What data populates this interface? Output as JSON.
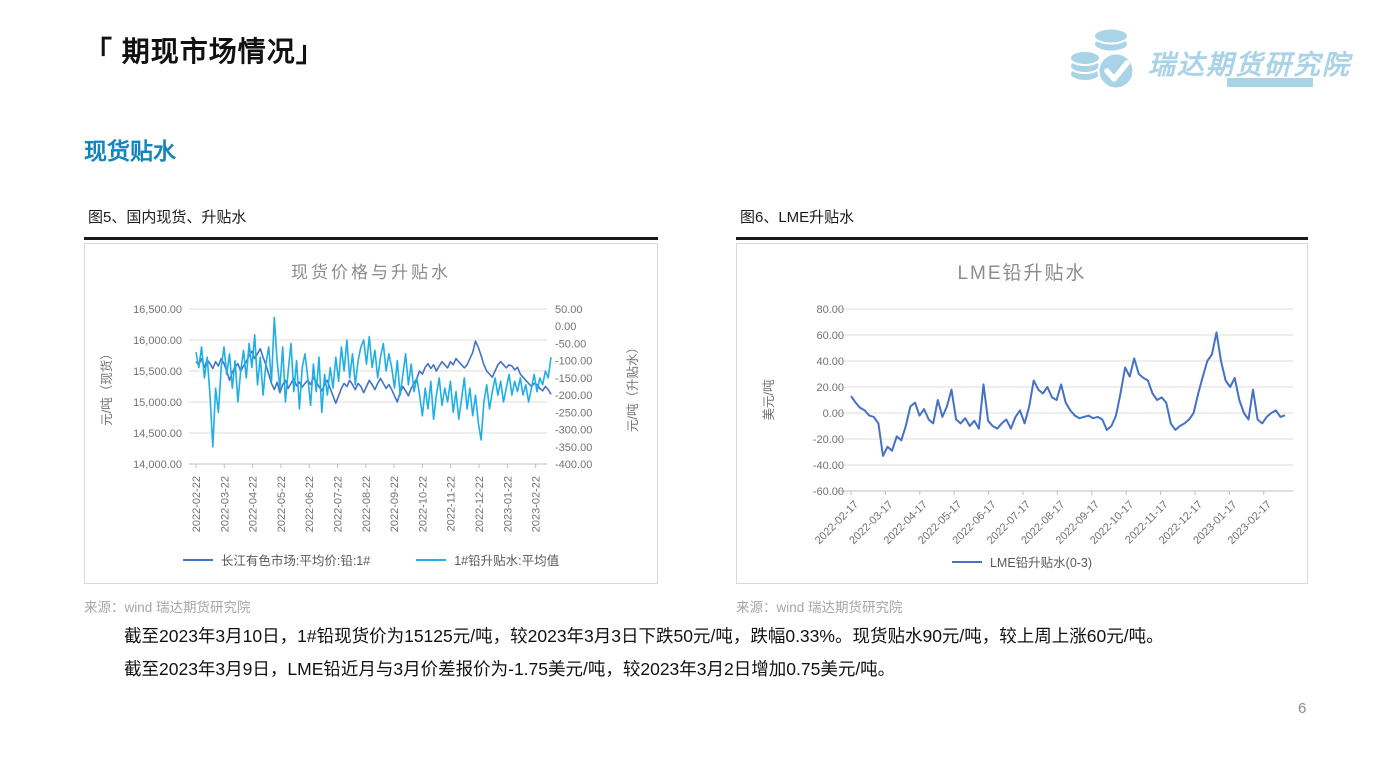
{
  "page": {
    "title": "「 期现市场情况」",
    "section_heading": "现货贴水",
    "page_number": "6",
    "accent_color": "#1583bc",
    "brand": {
      "name": "瑞达期货研究院",
      "color": "#a9d3e7"
    }
  },
  "figures": [
    {
      "caption": "图5、国内现货、升贴水",
      "source": "来源：wind   瑞达期货研究院"
    },
    {
      "caption": "图6、LME升贴水",
      "source": "来源：wind   瑞达期货研究院"
    }
  ],
  "notes": [
    "截至2023年3月10日，1#铅现货价为15125元/吨，较2023年3月3日下跌50元/吨，跌幅0.33%。现货贴水90元/吨，较上周上涨60元/吨。",
    "截至2023年3月9日，LME铅近月与3月价差报价为-1.75美元/吨，较2023年3月2日增加0.75美元/吨。"
  ],
  "chart_data": [
    {
      "type": "line",
      "title": "现货价格与升贴水",
      "grid": true,
      "legend_position": "bottom",
      "x_tick_labels": [
        "2022-02-22",
        "2022-03-22",
        "2022-04-22",
        "2022-05-22",
        "2022-06-22",
        "2022-07-22",
        "2022-08-22",
        "2022-09-22",
        "2022-10-22",
        "2022-11-22",
        "2022-12-22",
        "2023-01-22",
        "2023-02-22"
      ],
      "y_left": {
        "label": "元/吨（现货）",
        "min": 14000,
        "max": 16500,
        "step": 500
      },
      "y_right": {
        "label": "元/吨（升贴水）",
        "min": -400,
        "max": 50,
        "step": 50
      },
      "series": [
        {
          "name": "长江有色市场:平均价:铅:1#",
          "color": "#4472c4",
          "axis": "left",
          "values": [
            15650,
            15600,
            15700,
            15560,
            15680,
            15620,
            15540,
            15650,
            15580,
            15700,
            15620,
            15500,
            15350,
            15480,
            15560,
            15620,
            15500,
            15580,
            15650,
            15750,
            15820,
            15700,
            15780,
            15860,
            15720,
            15600,
            15450,
            15300,
            15200,
            15320,
            15150,
            15280,
            15350,
            15220,
            15300,
            15380,
            15260,
            15320,
            15240,
            15300,
            15350,
            15280,
            15400,
            15320,
            15250,
            15180,
            15280,
            15350,
            15220,
            15100,
            14980,
            15100,
            15220,
            15300,
            15250,
            15350,
            15280,
            15200,
            15300,
            15250,
            15150,
            15250,
            15350,
            15280,
            15200,
            15300,
            15380,
            15300,
            15220,
            15280,
            15200,
            15100,
            15000,
            15150,
            15250,
            15180,
            15100,
            15220,
            15300,
            15380,
            15500,
            15450,
            15560,
            15620,
            15540,
            15600,
            15500,
            15580,
            15650,
            15600,
            15550,
            15650,
            15600,
            15700,
            15650,
            15600,
            15550,
            15600,
            15700,
            15800,
            15980,
            15880,
            15750,
            15600,
            15500,
            15450,
            15400,
            15500,
            15600,
            15650,
            15600,
            15550,
            15600,
            15580,
            15520,
            15560,
            15450,
            15400,
            15350,
            15300,
            15250,
            15300,
            15280,
            15220,
            15180,
            15250,
            15200,
            15125
          ]
        },
        {
          "name": "1#铅升贴水:平均值",
          "color": "#21aee5",
          "axis": "right",
          "values": [
            -75,
            -120,
            -60,
            -150,
            -90,
            -200,
            -350,
            -180,
            -250,
            -120,
            -60,
            -140,
            -80,
            -180,
            -100,
            -220,
            -130,
            -70,
            -150,
            -50,
            -120,
            -25,
            -170,
            -90,
            -200,
            -110,
            -60,
            -160,
            25,
            -100,
            -180,
            -60,
            -220,
            -130,
            -50,
            -190,
            -100,
            -240,
            -120,
            -80,
            -150,
            -230,
            -110,
            -190,
            -90,
            -250,
            -140,
            -200,
            -120,
            -180,
            -90,
            -160,
            -60,
            -130,
            -40,
            -150,
            -80,
            -170,
            -100,
            -60,
            -40,
            -110,
            -30,
            -120,
            -70,
            -150,
            -90,
            -50,
            -130,
            -80,
            -120,
            -180,
            -100,
            -200,
            -140,
            -80,
            -170,
            -110,
            -190,
            -150,
            -200,
            -260,
            -180,
            -240,
            -160,
            -270,
            -200,
            -150,
            -230,
            -180,
            -220,
            -160,
            -250,
            -190,
            -270,
            -210,
            -150,
            -240,
            -180,
            -260,
            -200,
            -280,
            -330,
            -220,
            -170,
            -240,
            -190,
            -150,
            -200,
            -160,
            -220,
            -180,
            -140,
            -200,
            -160,
            -190,
            -150,
            -200,
            -170,
            -220,
            -180,
            -140,
            -190,
            -150,
            -170,
            -130,
            -150,
            -90
          ]
        }
      ]
    },
    {
      "type": "line",
      "title": "LME铅升贴水",
      "grid": true,
      "legend_position": "bottom",
      "x_tick_labels": [
        "2022-02-17",
        "2022-03-17",
        "2022-04-17",
        "2022-05-17",
        "2022-06-17",
        "2022-07-17",
        "2022-08-17",
        "2022-09-17",
        "2022-10-17",
        "2022-11-17",
        "2022-12-17",
        "2023-01-17",
        "2023-02-17"
      ],
      "y_left": {
        "label": "美元/吨",
        "min": -60,
        "max": 80,
        "step": 20
      },
      "series": [
        {
          "name": "LME铅升贴水(0-3)",
          "color": "#4472c4",
          "axis": "left",
          "values": [
            13,
            8,
            4,
            2,
            -2,
            -3,
            -8,
            -33,
            -26,
            -29,
            -18,
            -21,
            -10,
            5,
            8,
            -2,
            3,
            -5,
            -8,
            10,
            -3,
            5,
            18,
            -5,
            -8,
            -4,
            -10,
            -6,
            -12,
            22,
            -6,
            -10,
            -12,
            -8,
            -5,
            -12,
            -3,
            2,
            -8,
            5,
            25,
            18,
            15,
            20,
            12,
            10,
            22,
            8,
            2,
            -2,
            -4,
            -3,
            -2,
            -4,
            -3,
            -5,
            -13,
            -10,
            -2,
            15,
            35,
            28,
            42,
            30,
            27,
            25,
            15,
            10,
            12,
            8,
            -8,
            -13,
            -10,
            -8,
            -5,
            0,
            15,
            28,
            40,
            45,
            62,
            40,
            25,
            20,
            27,
            10,
            0,
            -5,
            18,
            -5,
            -8,
            -3,
            0,
            2,
            -3,
            -1.75
          ]
        }
      ]
    }
  ]
}
